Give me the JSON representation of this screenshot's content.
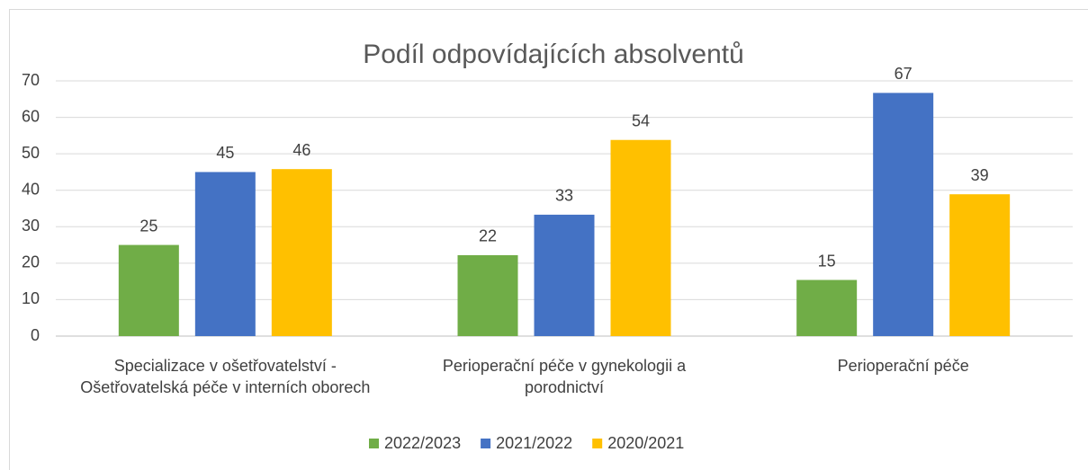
{
  "chart_data": {
    "type": "bar",
    "title": "Podíl odpovídajících absolventů",
    "categories": [
      "Specializace v ošetřovatelství - Ošetřovatelská péče v interních oborech",
      "Perioperační péče v gynekologii a porodnictví",
      "Perioperační péče"
    ],
    "series": [
      {
        "name": "2022/2023",
        "color": "#70ad47",
        "values": [
          25,
          22.2,
          15.4
        ],
        "value_labels": [
          "25",
          "22",
          "15"
        ]
      },
      {
        "name": "2021/2022",
        "color": "#4472c4",
        "values": [
          45,
          33.3,
          66.7
        ],
        "value_labels": [
          "45",
          "33",
          "67"
        ]
      },
      {
        "name": "2020/2021",
        "color": "#ffc000",
        "values": [
          45.8,
          53.8,
          38.9
        ],
        "value_labels": [
          "46",
          "54",
          "39"
        ]
      }
    ],
    "ylim": [
      0,
      70
    ],
    "yticks": [
      0,
      10,
      20,
      30,
      40,
      50,
      60,
      70
    ],
    "grid": true,
    "legend": "bottom"
  }
}
